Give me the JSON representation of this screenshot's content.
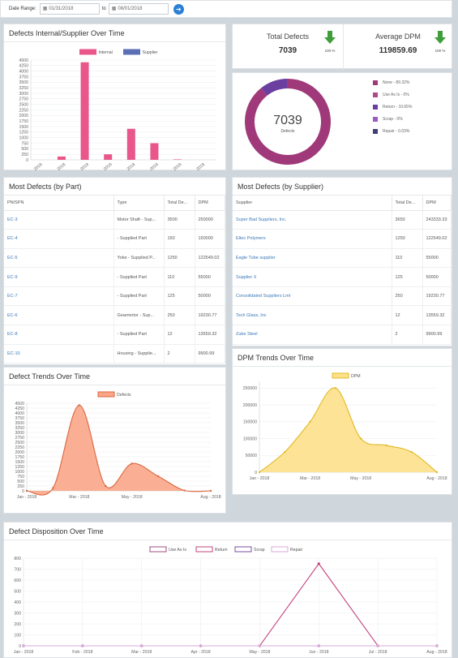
{
  "filter": {
    "label": "Date Range:",
    "from": "01/31/2018",
    "to_label": "to",
    "to": "08/01/2018"
  },
  "kpis": {
    "total_defects": {
      "label": "Total Defects",
      "value": "7039",
      "pct": "100 %"
    },
    "average_dpm": {
      "label": "Average DPM",
      "value": "119859.69",
      "pct": "100 %"
    }
  },
  "colors": {
    "internal": "#e8568a",
    "supplier": "#5b6fb5",
    "donut": "#a0397a",
    "defects_trend": "#f9a688",
    "defects_trend_line": "#d9683f",
    "dpm_trend": "#fde08a",
    "dpm_trend_line": "#e2b928",
    "disposition_line": "#b6497f",
    "arrow": "#3e9e3a"
  },
  "panels": {
    "internal_supplier": {
      "title": "Defects Internal/Supplier Over Time",
      "chart_data": {
        "type": "bar",
        "categories": [
          "Jan - 2018",
          "Feb - 2018",
          "Mar - 2018",
          "Apr - 2018",
          "May - 2018",
          "Jun - 2018",
          "Jul - 2018",
          "Aug - 2018"
        ],
        "series": [
          {
            "name": "Internal",
            "values": [
              0,
              150,
              4400,
              250,
              1400,
              750,
              20,
              0
            ]
          },
          {
            "name": "Supplier",
            "values": [
              0,
              0,
              0,
              0,
              0,
              0,
              0,
              0
            ]
          }
        ],
        "yticks": [
          0,
          250,
          500,
          750,
          1000,
          1250,
          1500,
          1750,
          2000,
          2250,
          2500,
          2750,
          3000,
          3250,
          3500,
          3750,
          4000,
          4250,
          4500
        ],
        "ylim": [
          0,
          4500
        ],
        "legend": "top"
      }
    },
    "donut": {
      "center_value": "7039",
      "center_label": "Defects",
      "chart_data": {
        "type": "pie",
        "labels": [
          "None - 89.32%",
          "Use As Is - 0%",
          "Return - 10.65%",
          "Scrap - 0%",
          "Repair - 0.03%"
        ],
        "values": [
          89.32,
          0,
          10.65,
          0,
          0.03
        ],
        "colors": [
          "#a0397a",
          "#b04a85",
          "#6b3fa0",
          "#9a5cc0",
          "#3f3f7a"
        ],
        "legend": "right"
      }
    },
    "by_part": {
      "title": "Most Defects (by Part)",
      "columns": [
        "PN/SPN",
        "Type",
        "Total De...",
        "DPM"
      ],
      "rows": [
        [
          "EC-3",
          "Motor Shaft - Sup...",
          "3500",
          "250000"
        ],
        [
          "EC-4",
          "- Supplied Part",
          "150",
          "150000"
        ],
        [
          "EC-5",
          "Yoke - Supplied P...",
          "1250",
          "122549.02"
        ],
        [
          "EC-9",
          "- Supplied Part",
          "110",
          "55000"
        ],
        [
          "EC-7",
          "- Supplied Part",
          "125",
          "50000"
        ],
        [
          "EC-6",
          "Gearmotor - Sup...",
          "250",
          "19230.77"
        ],
        [
          "EC-8",
          "- Supplied Part",
          "12",
          "13559.32"
        ],
        [
          "EC-10",
          "Housing - Supplie...",
          "2",
          "9900.99"
        ]
      ]
    },
    "by_supplier": {
      "title": "Most Defects (by Supplier)",
      "columns": [
        "Supplier",
        "Total De...",
        "DPM"
      ],
      "rows": [
        [
          "Super Bad Suppliers, Inc.",
          "3650",
          "243333.33"
        ],
        [
          "Eltec Polymers",
          "1250",
          "122549.02"
        ],
        [
          "Eagle Tube supplier",
          "110",
          "55000"
        ],
        [
          "Supplier X",
          "125",
          "50000"
        ],
        [
          "Consolidated Suppliers Lmt",
          "250",
          "19230.77"
        ],
        [
          "Tech Glass, Inc",
          "12",
          "13559.32"
        ],
        [
          "Zube Steel",
          "2",
          "9900.99"
        ]
      ]
    },
    "defect_trends": {
      "title": "Defect Trends Over Time",
      "chart_data": {
        "type": "area",
        "x": [
          "Jan - 2018",
          "Feb - 2018",
          "Mar - 2018",
          "Apr - 2018",
          "May - 2018",
          "Jun - 2018",
          "Jul - 2018",
          "Aug - 2018"
        ],
        "xticks": [
          "Jan - 2018",
          "Mar - 2018",
          "May - 2018",
          "Aug - 2018"
        ],
        "series": [
          {
            "name": "Defects",
            "values": [
              0,
              150,
              4400,
              250,
              1400,
              750,
              20,
              0
            ]
          }
        ],
        "yticks": [
          0,
          250,
          500,
          750,
          1000,
          1250,
          1500,
          1750,
          2000,
          2250,
          2500,
          2750,
          3000,
          3250,
          3500,
          3750,
          4000,
          4250,
          4500
        ],
        "ylim": [
          0,
          4500
        ],
        "legend": "top"
      }
    },
    "dpm_trends": {
      "title": "DPM Trends Over Time",
      "chart_data": {
        "type": "area",
        "x": [
          "Jan - 2018",
          "Feb - 2018",
          "Mar - 2018",
          "Apr - 2018",
          "May - 2018",
          "Jun - 2018",
          "Jul - 2018",
          "Aug - 2018"
        ],
        "xticks": [
          "Jan - 2018",
          "Mar - 2018",
          "May - 2018",
          "Aug - 2018"
        ],
        "series": [
          {
            "name": "DPM",
            "values": [
              0,
              60000,
              150000,
              250000,
              100000,
              80000,
              60000,
              0
            ]
          }
        ],
        "yticks": [
          0,
          50000,
          100000,
          150000,
          200000,
          250000
        ],
        "ylim": [
          0,
          270000
        ],
        "legend": "top"
      }
    },
    "disposition": {
      "title": "Defect Disposition Over Time",
      "chart_data": {
        "type": "line",
        "x": [
          "Jan - 2018",
          "Feb - 2018",
          "Mar - 2018",
          "Apr - 2018",
          "May - 2018",
          "Jun - 2018",
          "Jul - 2018",
          "Aug - 2018"
        ],
        "series": [
          {
            "name": "Use As Is",
            "values": [
              0,
              0,
              0,
              0,
              0,
              0,
              0,
              0
            ],
            "color": "#9c4f82"
          },
          {
            "name": "Return",
            "values": [
              0,
              0,
              0,
              0,
              0,
              750,
              0,
              0
            ],
            "color": "#c2447e"
          },
          {
            "name": "Scrap",
            "values": [
              0,
              0,
              0,
              0,
              0,
              0,
              0,
              0
            ],
            "color": "#7b4fa0"
          },
          {
            "name": "Repair",
            "values": [
              0,
              0,
              0,
              0,
              0,
              0,
              0,
              0
            ],
            "color": "#d8a8d8"
          }
        ],
        "yticks": [
          0,
          100,
          200,
          300,
          400,
          500,
          600,
          700,
          800
        ],
        "ylim": [
          0,
          800
        ],
        "legend": "top"
      }
    }
  }
}
